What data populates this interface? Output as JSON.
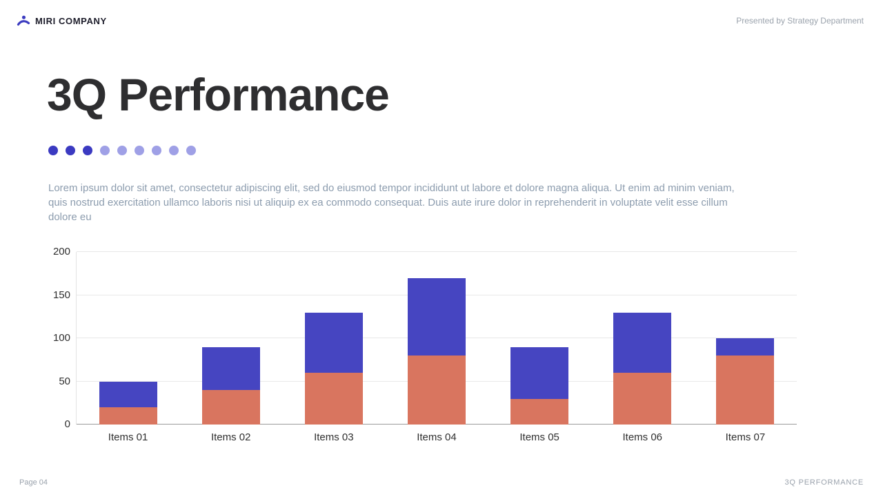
{
  "header": {
    "company": "MIRI COMPANY",
    "presented_by": "Presented by Strategy Department"
  },
  "title": "3Q Performance",
  "progress_dots": {
    "total": 9,
    "active": 3
  },
  "body_text": "Lorem ipsum dolor sit amet, consectetur adipiscing elit, sed do eiusmod tempor incididunt ut labore et dolore magna aliqua. Ut enim ad minim veniam, quis nostrud exercitation ullamco laboris nisi ut aliquip ex ea commodo consequat. Duis aute irure dolor in reprehenderit in voluptate velit esse cillum dolore eu",
  "chart_data": {
    "type": "bar",
    "stacked": true,
    "title": "",
    "xlabel": "",
    "ylabel": "",
    "categories": [
      "Items 01",
      "Items 02",
      "Items 03",
      "Items 04",
      "Items 05",
      "Items 06",
      "Items 07"
    ],
    "series": [
      {
        "name": "series-1-bottom",
        "color": "#d9755f",
        "values": [
          20,
          40,
          60,
          80,
          30,
          60,
          80
        ]
      },
      {
        "name": "series-2-top",
        "color": "#4645c1",
        "values": [
          30,
          50,
          70,
          90,
          60,
          70,
          20
        ]
      }
    ],
    "totals": [
      50,
      90,
      130,
      170,
      90,
      130,
      100
    ],
    "ylim": [
      0,
      200
    ],
    "yticks": [
      0,
      50,
      100,
      150,
      200
    ],
    "grid": true,
    "legend": "none"
  },
  "footer": {
    "page": "Page 04",
    "section": "3Q PERFORMANCE"
  },
  "colors": {
    "accent_blue": "#4645c1",
    "accent_coral": "#d9755f",
    "dot_active": "#3b3ac1",
    "dot_inactive": "#9fa0e6",
    "logo_blue": "#3c3cc0"
  }
}
